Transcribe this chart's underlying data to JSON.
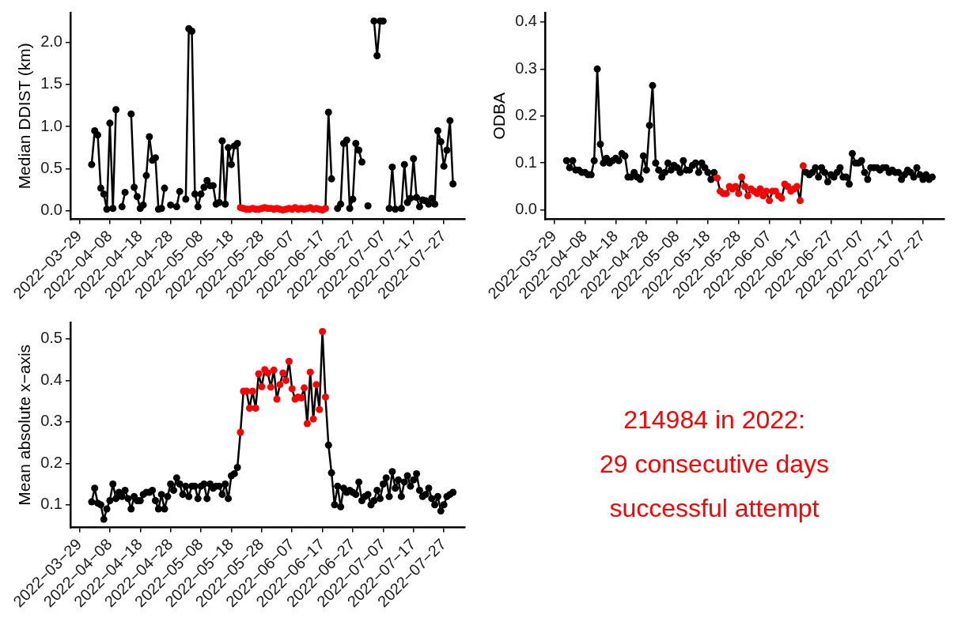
{
  "chart_data": [
    {
      "type": "line",
      "ylabel": "Median DDIST (km)",
      "marker": "circle",
      "line_style": "solid",
      "x": [
        "2022-04-02",
        "2022-04-03",
        "2022-04-04",
        "2022-04-05",
        "2022-04-06",
        "2022-04-07",
        "2022-04-08",
        "2022-04-09",
        "2022-04-10",
        "2022-04-11",
        "2022-04-12",
        "2022-04-13",
        "2022-04-14",
        "2022-04-15",
        "2022-04-16",
        "2022-04-17",
        "2022-04-18",
        "2022-04-19",
        "2022-04-20",
        "2022-04-21",
        "2022-04-22",
        "2022-04-23",
        "2022-04-24",
        "2022-04-25",
        "2022-04-26",
        "2022-04-27",
        "2022-04-28",
        "2022-04-29",
        "2022-04-30",
        "2022-05-01",
        "2022-05-02",
        "2022-05-03",
        "2022-05-04",
        "2022-05-05",
        "2022-05-06",
        "2022-05-07",
        "2022-05-08",
        "2022-05-09",
        "2022-05-10",
        "2022-05-11",
        "2022-05-12",
        "2022-05-13",
        "2022-05-14",
        "2022-05-15",
        "2022-05-16",
        "2022-05-17",
        "2022-05-18",
        "2022-05-19",
        "2022-05-20",
        "2022-05-21",
        "2022-05-22",
        "2022-05-23",
        "2022-05-24",
        "2022-05-25",
        "2022-05-26",
        "2022-05-27",
        "2022-05-28",
        "2022-05-29",
        "2022-05-30",
        "2022-05-31",
        "2022-06-01",
        "2022-06-02",
        "2022-06-03",
        "2022-06-04",
        "2022-06-05",
        "2022-06-06",
        "2022-06-07",
        "2022-06-08",
        "2022-06-09",
        "2022-06-10",
        "2022-06-11",
        "2022-06-12",
        "2022-06-13",
        "2022-06-14",
        "2022-06-15",
        "2022-06-16",
        "2022-06-17",
        "2022-06-18",
        "2022-06-19",
        "2022-06-20",
        "2022-06-21",
        "2022-06-22",
        "2022-06-23",
        "2022-06-24",
        "2022-06-25",
        "2022-06-26",
        "2022-06-27",
        "2022-06-28",
        "2022-06-29",
        "2022-06-30",
        "2022-07-01",
        "2022-07-02",
        "2022-07-03",
        "2022-07-04",
        "2022-07-05",
        "2022-07-06",
        "2022-07-07",
        "2022-07-08",
        "2022-07-09",
        "2022-07-10",
        "2022-07-11",
        "2022-07-12",
        "2022-07-13",
        "2022-07-14",
        "2022-07-15",
        "2022-07-16",
        "2022-07-17",
        "2022-07-18",
        "2022-07-19",
        "2022-07-20",
        "2022-07-21",
        "2022-07-22",
        "2022-07-23",
        "2022-07-24",
        "2022-07-25",
        "2022-07-26",
        "2022-07-27",
        "2022-07-28",
        "2022-07-29",
        "2022-07-30"
      ],
      "xlim": [
        "2022-03-26",
        "2022-08-03"
      ],
      "xticks": [
        {
          "value": "2022-03-29",
          "label": "2022−03−29"
        },
        {
          "value": "2022-04-08",
          "label": "2022−04−08"
        },
        {
          "value": "2022-04-18",
          "label": "2022−04−18"
        },
        {
          "value": "2022-04-28",
          "label": "2022−04−28"
        },
        {
          "value": "2022-05-08",
          "label": "2022−05−08"
        },
        {
          "value": "2022-05-18",
          "label": "2022−05−18"
        },
        {
          "value": "2022-05-28",
          "label": "2022−05−28"
        },
        {
          "value": "2022-06-07",
          "label": "2022−06−07"
        },
        {
          "value": "2022-06-17",
          "label": "2022−06−17"
        },
        {
          "value": "2022-06-27",
          "label": "2022−06−27"
        },
        {
          "value": "2022-07-07",
          "label": "2022−07−07"
        },
        {
          "value": "2022-07-17",
          "label": "2022−07−17"
        },
        {
          "value": "2022-07-27",
          "label": "2022−07−27"
        }
      ],
      "ylim": [
        -0.1,
        2.35
      ],
      "yticks": [
        {
          "value": 0,
          "label": "0.0"
        },
        {
          "value": 0.5,
          "label": "0.5"
        },
        {
          "value": 1,
          "label": "1.0"
        },
        {
          "value": 1.5,
          "label": "1.5"
        },
        {
          "value": 2,
          "label": "2.0"
        }
      ],
      "series": [
        {
          "color": "#000000",
          "values": [
            0.55,
            0.95,
            0.9,
            0.27,
            0.2,
            0.02,
            1.04,
            0.03,
            1.2,
            null,
            0.05,
            0.22,
            null,
            1.15,
            0.28,
            0.17,
            0.03,
            0.07,
            0.42,
            0.88,
            0.6,
            0.63,
            0.02,
            0.03,
            0.27,
            null,
            0.07,
            null,
            0.05,
            0.23,
            null,
            0.14,
            2.16,
            2.13,
            0.2,
            0.05,
            0.2,
            0.28,
            0.36,
            0.3,
            0.3,
            0.08,
            0.1,
            0.83,
            0.08,
            0.75,
            0.55,
            0.77,
            0.8,
            0.04,
            0.03,
            0.02,
            0.02,
            0.03,
            0.02,
            0.02,
            0.03,
            0.04,
            0.03,
            0.03,
            0.02,
            0.03,
            0.02,
            0.01,
            0.02,
            0.03,
            0.02,
            0.04,
            0.02,
            0.03,
            0.02,
            0.03,
            0.04,
            0.02,
            0.03,
            0.02,
            0.01,
            0.03,
            1.17,
            0.38,
            null,
            0.03,
            0.08,
            0.8,
            0.84,
            0.03,
            0.14,
            0.8,
            0.72,
            0.58,
            null,
            0.06,
            null,
            2.25,
            1.84,
            2.25,
            2.25,
            null,
            0.03,
            0.52,
            0.02,
            null,
            0.03,
            0.55,
            0.1,
            0.15,
            0.62,
            0.16,
            0.05,
            0.13,
            0.12,
            0.08,
            0.15,
            0.08,
            0.95,
            0.82,
            0.53,
            0.72,
            1.07,
            0.32
          ],
          "colors": [
            "#000000",
            "#000000",
            "#000000",
            "#000000",
            "#000000",
            "#000000",
            "#000000",
            "#000000",
            "#000000",
            "#000000",
            "#000000",
            "#000000",
            "#000000",
            "#000000",
            "#000000",
            "#000000",
            "#000000",
            "#000000",
            "#000000",
            "#000000",
            "#000000",
            "#000000",
            "#000000",
            "#000000",
            "#000000",
            "#000000",
            "#000000",
            "#000000",
            "#000000",
            "#000000",
            "#000000",
            "#000000",
            "#000000",
            "#000000",
            "#000000",
            "#000000",
            "#000000",
            "#000000",
            "#000000",
            "#000000",
            "#000000",
            "#000000",
            "#000000",
            "#000000",
            "#000000",
            "#000000",
            "#000000",
            "#000000",
            "#000000",
            "#ff0000",
            "#ff0000",
            "#ff0000",
            "#ff0000",
            "#ff0000",
            "#ff0000",
            "#ff0000",
            "#ff0000",
            "#ff0000",
            "#ff0000",
            "#ff0000",
            "#ff0000",
            "#ff0000",
            "#ff0000",
            "#ff0000",
            "#ff0000",
            "#ff0000",
            "#ff0000",
            "#ff0000",
            "#ff0000",
            "#ff0000",
            "#ff0000",
            "#ff0000",
            "#ff0000",
            "#ff0000",
            "#ff0000",
            "#ff0000",
            "#ff0000",
            "#ff0000",
            "#000000",
            "#000000",
            "#000000",
            "#000000",
            "#000000",
            "#000000",
            "#000000",
            "#000000",
            "#000000",
            "#000000",
            "#000000",
            "#000000",
            "#000000",
            "#000000",
            "#000000",
            "#000000",
            "#000000",
            "#000000",
            "#000000",
            "#000000",
            "#000000",
            "#000000",
            "#000000",
            "#000000",
            "#000000",
            "#000000",
            "#000000",
            "#000000",
            "#000000",
            "#000000",
            "#000000",
            "#000000",
            "#000000",
            "#000000",
            "#000000",
            "#000000",
            "#000000",
            "#000000",
            "#000000",
            "#000000",
            "#000000",
            "#000000"
          ]
        }
      ]
    },
    {
      "type": "line",
      "ylabel": "ODBA",
      "marker": "circle",
      "line_style": "solid",
      "x": [
        "2022-04-02",
        "2022-04-03",
        "2022-04-04",
        "2022-04-05",
        "2022-04-06",
        "2022-04-07",
        "2022-04-08",
        "2022-04-09",
        "2022-04-10",
        "2022-04-11",
        "2022-04-12",
        "2022-04-13",
        "2022-04-14",
        "2022-04-15",
        "2022-04-16",
        "2022-04-17",
        "2022-04-18",
        "2022-04-19",
        "2022-04-20",
        "2022-04-21",
        "2022-04-22",
        "2022-04-23",
        "2022-04-24",
        "2022-04-25",
        "2022-04-26",
        "2022-04-27",
        "2022-04-28",
        "2022-04-29",
        "2022-04-30",
        "2022-05-01",
        "2022-05-02",
        "2022-05-03",
        "2022-05-04",
        "2022-05-05",
        "2022-05-06",
        "2022-05-07",
        "2022-05-08",
        "2022-05-09",
        "2022-05-10",
        "2022-05-11",
        "2022-05-12",
        "2022-05-13",
        "2022-05-14",
        "2022-05-15",
        "2022-05-16",
        "2022-05-17",
        "2022-05-18",
        "2022-05-19",
        "2022-05-20",
        "2022-05-21",
        "2022-05-22",
        "2022-05-23",
        "2022-05-24",
        "2022-05-25",
        "2022-05-26",
        "2022-05-27",
        "2022-05-28",
        "2022-05-29",
        "2022-05-30",
        "2022-05-31",
        "2022-06-01",
        "2022-06-02",
        "2022-06-03",
        "2022-06-04",
        "2022-06-05",
        "2022-06-06",
        "2022-06-07",
        "2022-06-08",
        "2022-06-09",
        "2022-06-10",
        "2022-06-11",
        "2022-06-12",
        "2022-06-13",
        "2022-06-14",
        "2022-06-15",
        "2022-06-16",
        "2022-06-17",
        "2022-06-18",
        "2022-06-19",
        "2022-06-20",
        "2022-06-21",
        "2022-06-22",
        "2022-06-23",
        "2022-06-24",
        "2022-06-25",
        "2022-06-26",
        "2022-06-27",
        "2022-06-28",
        "2022-06-29",
        "2022-06-30",
        "2022-07-01",
        "2022-07-02",
        "2022-07-03",
        "2022-07-04",
        "2022-07-05",
        "2022-07-06",
        "2022-07-07",
        "2022-07-08",
        "2022-07-09",
        "2022-07-10",
        "2022-07-11",
        "2022-07-12",
        "2022-07-13",
        "2022-07-14",
        "2022-07-15",
        "2022-07-16",
        "2022-07-17",
        "2022-07-18",
        "2022-07-19",
        "2022-07-20",
        "2022-07-21",
        "2022-07-22",
        "2022-07-23",
        "2022-07-24",
        "2022-07-25",
        "2022-07-26",
        "2022-07-27",
        "2022-07-28",
        "2022-07-29",
        "2022-07-30"
      ],
      "xlim": [
        "2022-03-26",
        "2022-08-03"
      ],
      "xticks": [
        {
          "value": "2022-03-29",
          "label": "2022−03−29"
        },
        {
          "value": "2022-04-08",
          "label": "2022−04−08"
        },
        {
          "value": "2022-04-18",
          "label": "2022−04−18"
        },
        {
          "value": "2022-04-28",
          "label": "2022−04−28"
        },
        {
          "value": "2022-05-08",
          "label": "2022−05−08"
        },
        {
          "value": "2022-05-18",
          "label": "2022−05−18"
        },
        {
          "value": "2022-05-28",
          "label": "2022−05−28"
        },
        {
          "value": "2022-06-07",
          "label": "2022−06−07"
        },
        {
          "value": "2022-06-17",
          "label": "2022−06−17"
        },
        {
          "value": "2022-06-27",
          "label": "2022−06−27"
        },
        {
          "value": "2022-07-07",
          "label": "2022−07−07"
        },
        {
          "value": "2022-07-17",
          "label": "2022−07−17"
        },
        {
          "value": "2022-07-27",
          "label": "2022−07−27"
        }
      ],
      "ylim": [
        -0.02,
        0.42
      ],
      "yticks": [
        {
          "value": 0,
          "label": "0.0"
        },
        {
          "value": 0.1,
          "label": "0.1"
        },
        {
          "value": 0.2,
          "label": "0.2"
        },
        {
          "value": 0.3,
          "label": "0.3"
        },
        {
          "value": 0.4,
          "label": "0.4"
        }
      ],
      "series": [
        {
          "color": "#000000",
          "values": [
            0.105,
            0.09,
            0.105,
            0.085,
            0.085,
            0.08,
            0.08,
            0.075,
            0.075,
            0.105,
            0.3,
            0.14,
            0.1,
            0.11,
            0.1,
            0.105,
            0.11,
            0.105,
            0.12,
            0.115,
            0.07,
            0.07,
            0.08,
            0.07,
            0.065,
            0.115,
            0.085,
            0.18,
            0.265,
            0.1,
            0.085,
            0.07,
            0.08,
            0.1,
            0.085,
            0.095,
            0.09,
            0.08,
            0.105,
            0.085,
            0.085,
            0.095,
            0.1,
            0.08,
            0.1,
            0.09,
            0.08,
            0.065,
            0.08,
            0.068,
            0.04,
            0.035,
            0.035,
            0.05,
            0.045,
            0.05,
            0.035,
            0.07,
            0.05,
            0.03,
            0.045,
            0.04,
            0.035,
            0.045,
            0.03,
            0.04,
            0.02,
            0.04,
            0.04,
            0.03,
            0.025,
            0.055,
            0.05,
            0.04,
            0.045,
            0.05,
            0.02,
            0.094,
            0.08,
            0.075,
            0.08,
            0.09,
            0.07,
            0.09,
            0.08,
            0.06,
            0.075,
            0.07,
            0.08,
            0.09,
            0.07,
            0.07,
            0.055,
            0.12,
            0.1,
            0.1,
            0.105,
            0.08,
            0.065,
            0.09,
            0.09,
            0.09,
            0.085,
            0.09,
            0.09,
            0.08,
            0.085,
            0.08,
            0.08,
            0.065,
            0.075,
            0.085,
            0.08,
            0.07,
            0.09,
            0.075,
            0.065,
            0.075,
            0.065,
            0.07
          ],
          "colors": [
            "#000000",
            "#000000",
            "#000000",
            "#000000",
            "#000000",
            "#000000",
            "#000000",
            "#000000",
            "#000000",
            "#000000",
            "#000000",
            "#000000",
            "#000000",
            "#000000",
            "#000000",
            "#000000",
            "#000000",
            "#000000",
            "#000000",
            "#000000",
            "#000000",
            "#000000",
            "#000000",
            "#000000",
            "#000000",
            "#000000",
            "#000000",
            "#000000",
            "#000000",
            "#000000",
            "#000000",
            "#000000",
            "#000000",
            "#000000",
            "#000000",
            "#000000",
            "#000000",
            "#000000",
            "#000000",
            "#000000",
            "#000000",
            "#000000",
            "#000000",
            "#000000",
            "#000000",
            "#000000",
            "#000000",
            "#000000",
            "#000000",
            "#ff0000",
            "#ff0000",
            "#ff0000",
            "#ff0000",
            "#ff0000",
            "#ff0000",
            "#ff0000",
            "#ff0000",
            "#ff0000",
            "#ff0000",
            "#ff0000",
            "#ff0000",
            "#ff0000",
            "#ff0000",
            "#ff0000",
            "#ff0000",
            "#ff0000",
            "#ff0000",
            "#ff0000",
            "#ff0000",
            "#ff0000",
            "#ff0000",
            "#ff0000",
            "#ff0000",
            "#ff0000",
            "#ff0000",
            "#ff0000",
            "#ff0000",
            "#ff0000",
            "#000000",
            "#000000",
            "#000000",
            "#000000",
            "#000000",
            "#000000",
            "#000000",
            "#000000",
            "#000000",
            "#000000",
            "#000000",
            "#000000",
            "#000000",
            "#000000",
            "#000000",
            "#000000",
            "#000000",
            "#000000",
            "#000000",
            "#000000",
            "#000000",
            "#000000",
            "#000000",
            "#000000",
            "#000000",
            "#000000",
            "#000000",
            "#000000",
            "#000000",
            "#000000",
            "#000000",
            "#000000",
            "#000000",
            "#000000",
            "#000000",
            "#000000",
            "#000000",
            "#000000",
            "#000000",
            "#000000",
            "#000000",
            "#000000"
          ]
        }
      ]
    },
    {
      "type": "line",
      "ylabel": "Mean absolute x−axis",
      "marker": "circle",
      "line_style": "solid",
      "x": [
        "2022-04-02",
        "2022-04-03",
        "2022-04-04",
        "2022-04-05",
        "2022-04-06",
        "2022-04-07",
        "2022-04-08",
        "2022-04-09",
        "2022-04-10",
        "2022-04-11",
        "2022-04-12",
        "2022-04-13",
        "2022-04-14",
        "2022-04-15",
        "2022-04-16",
        "2022-04-17",
        "2022-04-18",
        "2022-04-19",
        "2022-04-20",
        "2022-04-21",
        "2022-04-22",
        "2022-04-23",
        "2022-04-24",
        "2022-04-25",
        "2022-04-26",
        "2022-04-27",
        "2022-04-28",
        "2022-04-29",
        "2022-04-30",
        "2022-05-01",
        "2022-05-02",
        "2022-05-03",
        "2022-05-04",
        "2022-05-05",
        "2022-05-06",
        "2022-05-07",
        "2022-05-08",
        "2022-05-09",
        "2022-05-10",
        "2022-05-11",
        "2022-05-12",
        "2022-05-13",
        "2022-05-14",
        "2022-05-15",
        "2022-05-16",
        "2022-05-17",
        "2022-05-18",
        "2022-05-19",
        "2022-05-20",
        "2022-05-21",
        "2022-05-22",
        "2022-05-23",
        "2022-05-24",
        "2022-05-25",
        "2022-05-26",
        "2022-05-27",
        "2022-05-28",
        "2022-05-29",
        "2022-05-30",
        "2022-05-31",
        "2022-06-01",
        "2022-06-02",
        "2022-06-03",
        "2022-06-04",
        "2022-06-05",
        "2022-06-06",
        "2022-06-07",
        "2022-06-08",
        "2022-06-09",
        "2022-06-10",
        "2022-06-11",
        "2022-06-12",
        "2022-06-13",
        "2022-06-14",
        "2022-06-15",
        "2022-06-16",
        "2022-06-17",
        "2022-06-18",
        "2022-06-19",
        "2022-06-20",
        "2022-06-21",
        "2022-06-22",
        "2022-06-23",
        "2022-06-24",
        "2022-06-25",
        "2022-06-26",
        "2022-06-27",
        "2022-06-28",
        "2022-06-29",
        "2022-06-30",
        "2022-07-01",
        "2022-07-02",
        "2022-07-03",
        "2022-07-04",
        "2022-07-05",
        "2022-07-06",
        "2022-07-07",
        "2022-07-08",
        "2022-07-09",
        "2022-07-10",
        "2022-07-11",
        "2022-07-12",
        "2022-07-13",
        "2022-07-14",
        "2022-07-15",
        "2022-07-16",
        "2022-07-17",
        "2022-07-18",
        "2022-07-19",
        "2022-07-20",
        "2022-07-21",
        "2022-07-22",
        "2022-07-23",
        "2022-07-24",
        "2022-07-25",
        "2022-07-26",
        "2022-07-27",
        "2022-07-28",
        "2022-07-29",
        "2022-07-30"
      ],
      "xlim": [
        "2022-03-26",
        "2022-08-03"
      ],
      "xticks": [
        {
          "value": "2022-03-29",
          "label": "2022−03−29"
        },
        {
          "value": "2022-04-08",
          "label": "2022−04−08"
        },
        {
          "value": "2022-04-18",
          "label": "2022−04−18"
        },
        {
          "value": "2022-04-28",
          "label": "2022−04−28"
        },
        {
          "value": "2022-05-08",
          "label": "2022−05−08"
        },
        {
          "value": "2022-05-18",
          "label": "2022−05−18"
        },
        {
          "value": "2022-05-28",
          "label": "2022−05−28"
        },
        {
          "value": "2022-06-07",
          "label": "2022−06−07"
        },
        {
          "value": "2022-06-17",
          "label": "2022−06−17"
        },
        {
          "value": "2022-06-27",
          "label": "2022−06−27"
        },
        {
          "value": "2022-07-07",
          "label": "2022−07−07"
        },
        {
          "value": "2022-07-17",
          "label": "2022−07−17"
        },
        {
          "value": "2022-07-27",
          "label": "2022−07−27"
        }
      ],
      "ylim": [
        0.045,
        0.54
      ],
      "yticks": [
        {
          "value": 0.1,
          "label": "0.1"
        },
        {
          "value": 0.2,
          "label": "0.2"
        },
        {
          "value": 0.3,
          "label": "0.3"
        },
        {
          "value": 0.4,
          "label": "0.4"
        },
        {
          "value": 0.5,
          "label": "0.5"
        }
      ],
      "series": [
        {
          "color": "#000000",
          "values": [
            0.107,
            0.14,
            0.104,
            0.1,
            0.065,
            0.09,
            0.11,
            0.15,
            0.115,
            0.13,
            0.12,
            0.135,
            0.115,
            0.09,
            0.12,
            0.11,
            0.11,
            0.125,
            0.13,
            0.13,
            0.135,
            0.11,
            0.09,
            0.125,
            0.09,
            0.12,
            0.15,
            0.135,
            0.165,
            0.15,
            0.125,
            0.145,
            0.12,
            0.145,
            0.145,
            0.115,
            0.145,
            0.15,
            0.115,
            0.15,
            0.14,
            0.145,
            0.145,
            0.125,
            0.15,
            0.115,
            0.17,
            0.175,
            0.19,
            0.275,
            0.374,
            0.374,
            0.333,
            0.374,
            0.333,
            0.416,
            0.385,
            0.426,
            0.418,
            0.384,
            0.425,
            0.355,
            0.39,
            0.418,
            0.4,
            0.446,
            0.38,
            0.355,
            0.36,
            0.358,
            0.382,
            0.296,
            0.42,
            0.307,
            0.39,
            0.33,
            0.518,
            0.36,
            0.244,
            0.177,
            0.1,
            0.145,
            0.095,
            0.14,
            0.13,
            0.135,
            0.13,
            0.125,
            0.155,
            0.11,
            0.12,
            0.125,
            0.1,
            0.11,
            0.135,
            0.115,
            0.15,
            0.165,
            0.12,
            0.18,
            0.14,
            0.16,
            0.12,
            0.155,
            0.17,
            0.145,
            0.16,
            0.175,
            0.135,
            0.12,
            0.125,
            0.14,
            0.115,
            0.1,
            0.12,
            0.085,
            0.1,
            0.12,
            0.125,
            0.13
          ],
          "colors": [
            "#000000",
            "#000000",
            "#000000",
            "#000000",
            "#000000",
            "#000000",
            "#000000",
            "#000000",
            "#000000",
            "#000000",
            "#000000",
            "#000000",
            "#000000",
            "#000000",
            "#000000",
            "#000000",
            "#000000",
            "#000000",
            "#000000",
            "#000000",
            "#000000",
            "#000000",
            "#000000",
            "#000000",
            "#000000",
            "#000000",
            "#000000",
            "#000000",
            "#000000",
            "#000000",
            "#000000",
            "#000000",
            "#000000",
            "#000000",
            "#000000",
            "#000000",
            "#000000",
            "#000000",
            "#000000",
            "#000000",
            "#000000",
            "#000000",
            "#000000",
            "#000000",
            "#000000",
            "#000000",
            "#000000",
            "#000000",
            "#000000",
            "#ff0000",
            "#ff0000",
            "#ff0000",
            "#ff0000",
            "#ff0000",
            "#ff0000",
            "#ff0000",
            "#ff0000",
            "#ff0000",
            "#ff0000",
            "#ff0000",
            "#ff0000",
            "#ff0000",
            "#ff0000",
            "#ff0000",
            "#ff0000",
            "#ff0000",
            "#ff0000",
            "#ff0000",
            "#ff0000",
            "#ff0000",
            "#ff0000",
            "#ff0000",
            "#ff0000",
            "#ff0000",
            "#ff0000",
            "#ff0000",
            "#ff0000",
            "#ff0000",
            "#000000",
            "#000000",
            "#000000",
            "#000000",
            "#000000",
            "#000000",
            "#000000",
            "#000000",
            "#000000",
            "#000000",
            "#000000",
            "#000000",
            "#000000",
            "#000000",
            "#000000",
            "#000000",
            "#000000",
            "#000000",
            "#000000",
            "#000000",
            "#000000",
            "#000000",
            "#000000",
            "#000000",
            "#000000",
            "#000000",
            "#000000",
            "#000000",
            "#000000",
            "#000000",
            "#000000",
            "#000000",
            "#000000",
            "#000000",
            "#000000",
            "#000000",
            "#000000",
            "#000000",
            "#000000",
            "#000000",
            "#000000",
            "#000000"
          ]
        }
      ]
    },
    {
      "type": "other",
      "color": "#ff0000",
      "annotations": [
        "214984 in 2022:",
        "29 consecutive days",
        "successful attempt"
      ]
    }
  ]
}
